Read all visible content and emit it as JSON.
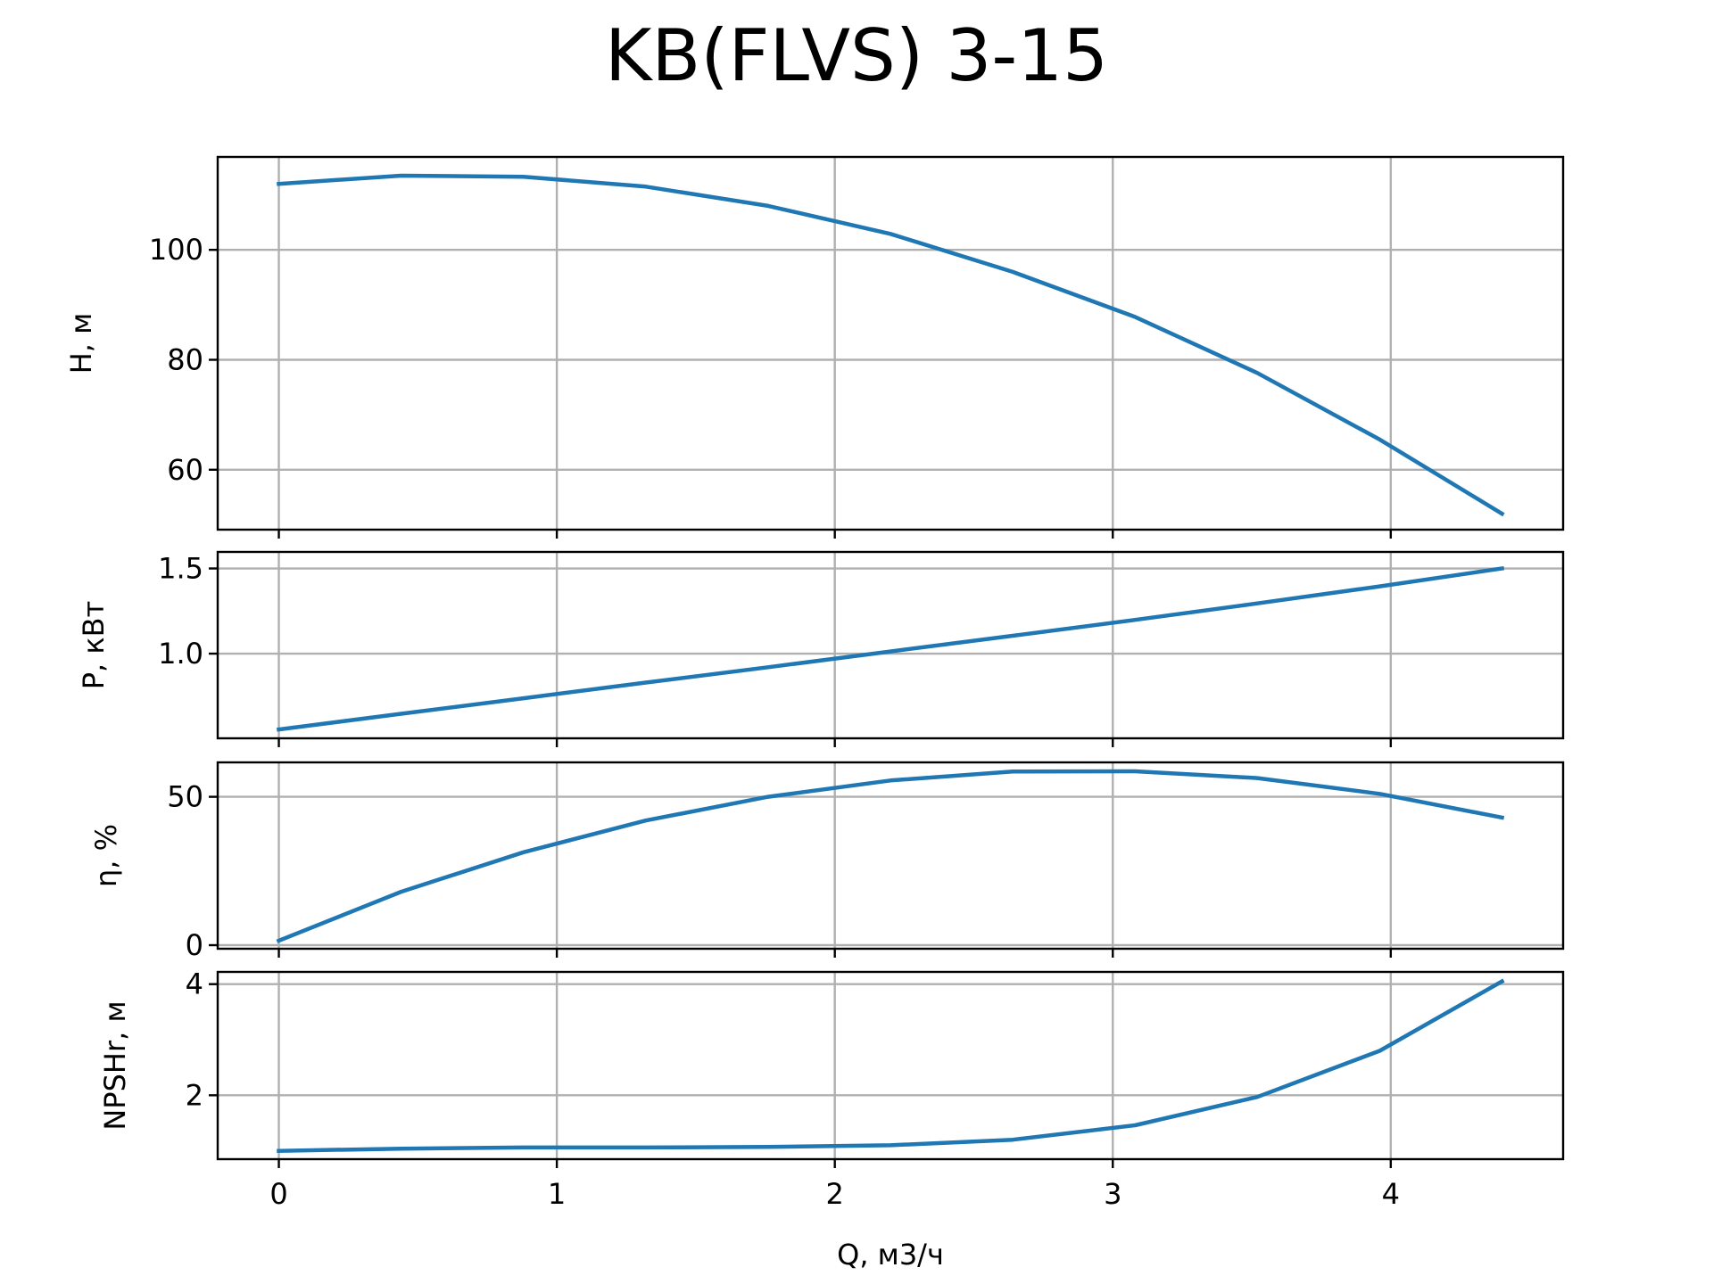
{
  "chart_data": [
    {
      "type": "line",
      "title": "KB(FLVS) 3-15",
      "xlabel": "",
      "ylabel": "H, м",
      "xlim": [
        -0.22,
        4.62
      ],
      "ylim": [
        49.1,
        116.9
      ],
      "xticks": [
        0,
        1,
        2,
        3,
        4
      ],
      "xtick_labels": [],
      "yticks": [
        60,
        80,
        100
      ],
      "ytick_labels": [
        "60",
        "80",
        "100"
      ],
      "grid": true,
      "series": [
        {
          "color": "#1f77b4",
          "x": [
            0,
            0.44,
            0.88,
            1.32,
            1.76,
            2.2,
            2.64,
            3.08,
            3.52,
            3.96,
            4.4
          ],
          "y": [
            112,
            113.5,
            113.3,
            111.5,
            108,
            102.9,
            96,
            87.8,
            77.6,
            65.5,
            52
          ]
        }
      ]
    },
    {
      "type": "line",
      "xlabel": "",
      "ylabel": "P, кВт",
      "xlim": [
        -0.22,
        4.62
      ],
      "ylim": [
        0.503,
        1.597
      ],
      "xticks": [
        0,
        1,
        2,
        3,
        4
      ],
      "xtick_labels": [],
      "yticks": [
        1.0,
        1.5
      ],
      "ytick_labels": [
        "1.0",
        "1.5"
      ],
      "grid": true,
      "series": [
        {
          "color": "#1f77b4",
          "x": [
            0,
            0.44,
            0.88,
            1.32,
            1.76,
            2.2,
            2.64,
            3.08,
            3.52,
            3.96,
            4.4
          ],
          "y": [
            0.555,
            0.647,
            0.738,
            0.83,
            0.92,
            1.013,
            1.105,
            1.198,
            1.295,
            1.395,
            1.5
          ]
        }
      ]
    },
    {
      "type": "line",
      "xlabel": "",
      "ylabel": "η, %",
      "xlim": [
        -0.22,
        4.62
      ],
      "ylim": [
        -1.2,
        61.6
      ],
      "xticks": [
        0,
        1,
        2,
        3,
        4
      ],
      "xtick_labels": [],
      "yticks": [
        0,
        50
      ],
      "ytick_labels": [
        "0",
        "50"
      ],
      "grid": true,
      "series": [
        {
          "color": "#1f77b4",
          "x": [
            0,
            0.44,
            0.88,
            1.32,
            1.76,
            2.2,
            2.64,
            3.08,
            3.52,
            3.96,
            4.4
          ],
          "y": [
            1.5,
            18,
            31.3,
            42,
            50,
            55.5,
            58.5,
            58.6,
            56.3,
            51,
            43
          ]
        }
      ]
    },
    {
      "type": "line",
      "xlabel": "Q, м3/ч",
      "ylabel": "NPSHr, м",
      "xlim": [
        -0.22,
        4.62
      ],
      "ylim": [
        0.85,
        4.22
      ],
      "xticks": [
        0,
        1,
        2,
        3,
        4
      ],
      "xtick_labels": [
        "0",
        "1",
        "2",
        "3",
        "4"
      ],
      "yticks": [
        2,
        4
      ],
      "ytick_labels": [
        "2",
        "4"
      ],
      "grid": true,
      "series": [
        {
          "color": "#1f77b4",
          "x": [
            0,
            0.44,
            0.88,
            1.32,
            1.76,
            2.2,
            2.64,
            3.08,
            3.52,
            3.96,
            4.4
          ],
          "y": [
            1.0,
            1.04,
            1.06,
            1.06,
            1.07,
            1.1,
            1.2,
            1.46,
            1.97,
            2.8,
            4.05
          ]
        }
      ]
    }
  ]
}
